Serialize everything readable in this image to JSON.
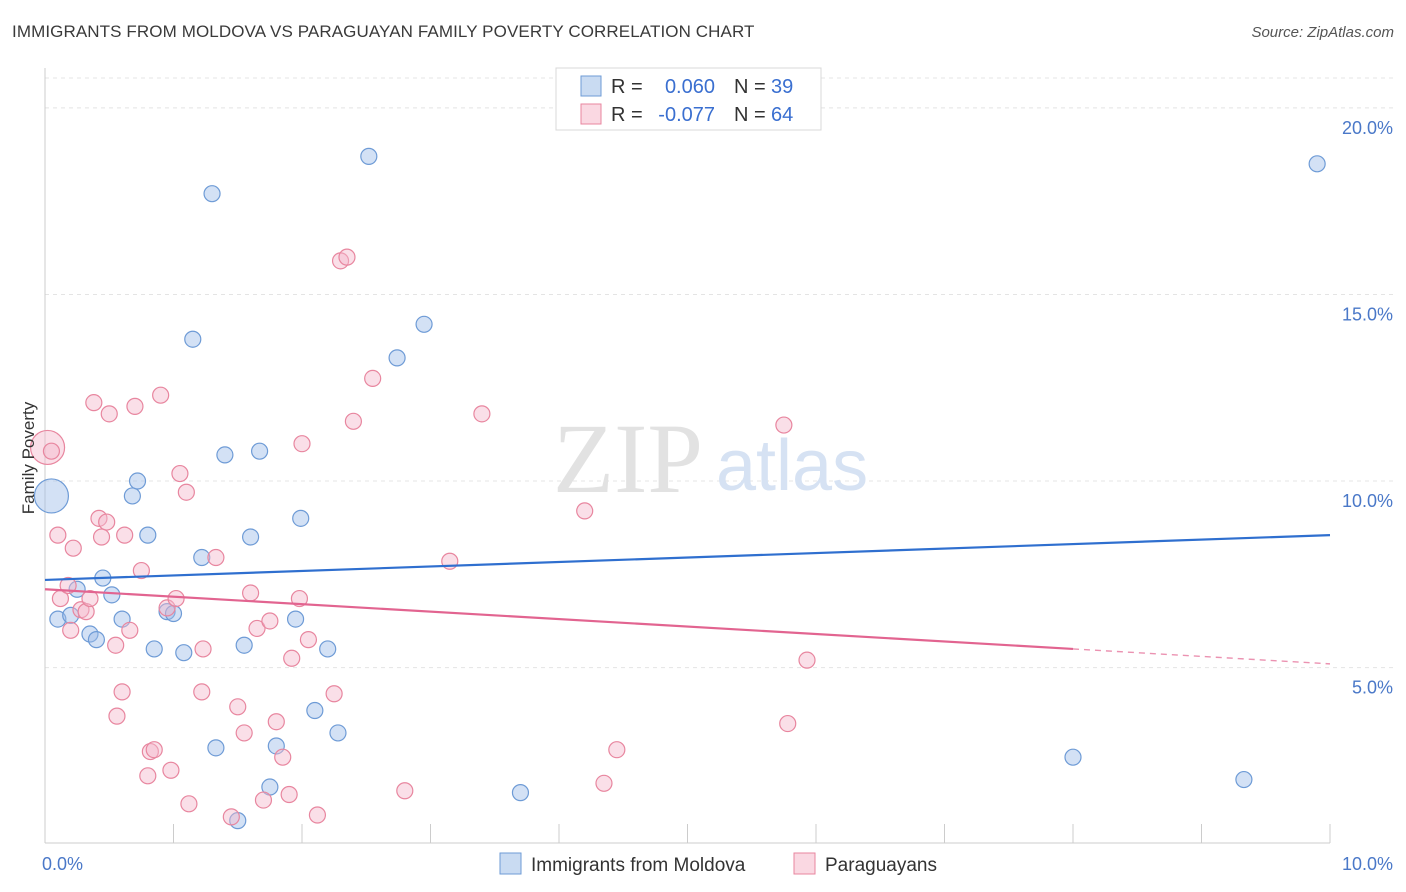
{
  "chart_data": {
    "type": "scatter",
    "title": "IMMIGRANTS FROM MOLDOVA VS PARAGUAYAN FAMILY POVERTY CORRELATION CHART",
    "source": "Source: ZipAtlas.com",
    "ylabel": "Family Poverty",
    "xlim": [
      0,
      10
    ],
    "ylim": [
      0.3,
      20.8
    ],
    "x_ticks": [
      {
        "value": 0,
        "label": "0.0%"
      },
      {
        "value": 10,
        "label": "10.0%"
      }
    ],
    "y_ticks": [
      {
        "value": 5,
        "label": "5.0%"
      },
      {
        "value": 10,
        "label": "10.0%"
      },
      {
        "value": 15,
        "label": "15.0%"
      },
      {
        "value": 20,
        "label": "20.0%"
      }
    ],
    "watermark": {
      "zip": "ZIP",
      "atlas": "atlas"
    },
    "legend": [
      {
        "series": "Immigrants from Moldova",
        "r_label": "R =",
        "r_value": "0.060",
        "n_label": "N =",
        "n_value": "39"
      },
      {
        "series": "Paraguayans",
        "r_label": "R =",
        "r_value": "-0.077",
        "n_label": "N =",
        "n_value": "64"
      }
    ],
    "series": [
      {
        "name": "Immigrants from Moldova",
        "color": "#9dbde8",
        "stroke": "#6e9bd6",
        "trend_color": "#2f6fcf",
        "trend": {
          "x0": 0,
          "y0": 7.35,
          "x1": 10,
          "y1": 8.55
        },
        "points": [
          {
            "x": 0.05,
            "y": 9.6,
            "big": true
          },
          {
            "x": 0.1,
            "y": 6.3
          },
          {
            "x": 0.2,
            "y": 6.4
          },
          {
            "x": 0.25,
            "y": 7.1
          },
          {
            "x": 0.35,
            "y": 5.9
          },
          {
            "x": 0.4,
            "y": 5.75
          },
          {
            "x": 0.45,
            "y": 7.4
          },
          {
            "x": 0.52,
            "y": 6.95
          },
          {
            "x": 0.6,
            "y": 6.3
          },
          {
            "x": 0.68,
            "y": 9.6
          },
          {
            "x": 0.72,
            "y": 10.0
          },
          {
            "x": 0.8,
            "y": 8.55
          },
          {
            "x": 0.85,
            "y": 5.5
          },
          {
            "x": 0.95,
            "y": 6.5
          },
          {
            "x": 1.0,
            "y": 6.45
          },
          {
            "x": 1.08,
            "y": 5.4
          },
          {
            "x": 1.15,
            "y": 13.8
          },
          {
            "x": 1.22,
            "y": 7.95
          },
          {
            "x": 1.3,
            "y": 17.7
          },
          {
            "x": 1.33,
            "y": 2.85
          },
          {
            "x": 1.4,
            "y": 10.7
          },
          {
            "x": 1.5,
            "y": 0.9
          },
          {
            "x": 1.55,
            "y": 5.6
          },
          {
            "x": 1.6,
            "y": 8.5
          },
          {
            "x": 1.67,
            "y": 10.8
          },
          {
            "x": 1.75,
            "y": 1.8
          },
          {
            "x": 1.8,
            "y": 2.9
          },
          {
            "x": 1.95,
            "y": 6.3
          },
          {
            "x": 1.99,
            "y": 9.0
          },
          {
            "x": 2.1,
            "y": 3.85
          },
          {
            "x": 2.2,
            "y": 5.5
          },
          {
            "x": 2.28,
            "y": 3.25
          },
          {
            "x": 2.52,
            "y": 18.7
          },
          {
            "x": 2.74,
            "y": 13.3
          },
          {
            "x": 2.95,
            "y": 14.2
          },
          {
            "x": 3.7,
            "y": 1.65
          },
          {
            "x": 8.0,
            "y": 2.6
          },
          {
            "x": 9.33,
            "y": 2.0
          },
          {
            "x": 9.9,
            "y": 18.5
          }
        ]
      },
      {
        "name": "Paraguayans",
        "color": "#f5b8cb",
        "stroke": "#e8869f",
        "trend_color": "#e26490",
        "trend": {
          "x0": 0,
          "y0": 7.1,
          "x1": 8.0,
          "y1": 5.5,
          "dash_to_x": 10,
          "dash_to_y": 5.1
        },
        "points": [
          {
            "x": 0.02,
            "y": 10.9,
            "big": true
          },
          {
            "x": 0.05,
            "y": 10.8
          },
          {
            "x": 0.1,
            "y": 8.55
          },
          {
            "x": 0.12,
            "y": 6.85
          },
          {
            "x": 0.18,
            "y": 7.2
          },
          {
            "x": 0.2,
            "y": 6.0
          },
          {
            "x": 0.22,
            "y": 8.2
          },
          {
            "x": 0.28,
            "y": 6.55
          },
          {
            "x": 0.32,
            "y": 6.5
          },
          {
            "x": 0.35,
            "y": 6.85
          },
          {
            "x": 0.38,
            "y": 12.1
          },
          {
            "x": 0.42,
            "y": 9.0
          },
          {
            "x": 0.44,
            "y": 8.5
          },
          {
            "x": 0.48,
            "y": 8.9
          },
          {
            "x": 0.5,
            "y": 11.8
          },
          {
            "x": 0.55,
            "y": 5.6
          },
          {
            "x": 0.56,
            "y": 3.7
          },
          {
            "x": 0.6,
            "y": 4.35
          },
          {
            "x": 0.62,
            "y": 8.55
          },
          {
            "x": 0.66,
            "y": 6.0
          },
          {
            "x": 0.7,
            "y": 12.0
          },
          {
            "x": 0.75,
            "y": 7.6
          },
          {
            "x": 0.8,
            "y": 2.1
          },
          {
            "x": 0.82,
            "y": 2.75
          },
          {
            "x": 0.85,
            "y": 2.8
          },
          {
            "x": 0.9,
            "y": 12.3
          },
          {
            "x": 0.95,
            "y": 6.6
          },
          {
            "x": 0.98,
            "y": 2.25
          },
          {
            "x": 1.02,
            "y": 6.85
          },
          {
            "x": 1.05,
            "y": 10.2
          },
          {
            "x": 1.1,
            "y": 9.7
          },
          {
            "x": 1.12,
            "y": 1.35
          },
          {
            "x": 1.22,
            "y": 4.35
          },
          {
            "x": 1.23,
            "y": 5.5
          },
          {
            "x": 1.33,
            "y": 7.95
          },
          {
            "x": 1.45,
            "y": 1.0
          },
          {
            "x": 1.5,
            "y": 3.95
          },
          {
            "x": 1.55,
            "y": 3.25
          },
          {
            "x": 1.6,
            "y": 7.0
          },
          {
            "x": 1.65,
            "y": 6.05
          },
          {
            "x": 1.7,
            "y": 1.45
          },
          {
            "x": 1.75,
            "y": 6.25
          },
          {
            "x": 1.8,
            "y": 3.55
          },
          {
            "x": 1.85,
            "y": 2.6
          },
          {
            "x": 1.9,
            "y": 1.6
          },
          {
            "x": 1.92,
            "y": 5.25
          },
          {
            "x": 1.98,
            "y": 6.85
          },
          {
            "x": 2.0,
            "y": 11.0
          },
          {
            "x": 2.05,
            "y": 5.75
          },
          {
            "x": 2.12,
            "y": 1.05
          },
          {
            "x": 2.25,
            "y": 4.3
          },
          {
            "x": 2.3,
            "y": 15.9
          },
          {
            "x": 2.35,
            "y": 16.0
          },
          {
            "x": 2.4,
            "y": 11.6
          },
          {
            "x": 2.55,
            "y": 12.75
          },
          {
            "x": 2.8,
            "y": 1.7
          },
          {
            "x": 3.15,
            "y": 7.85
          },
          {
            "x": 3.4,
            "y": 11.8
          },
          {
            "x": 4.2,
            "y": 9.2
          },
          {
            "x": 4.35,
            "y": 1.9
          },
          {
            "x": 4.45,
            "y": 2.8
          },
          {
            "x": 5.75,
            "y": 11.5
          },
          {
            "x": 5.78,
            "y": 3.5
          },
          {
            "x": 5.93,
            "y": 5.2
          }
        ]
      }
    ]
  }
}
